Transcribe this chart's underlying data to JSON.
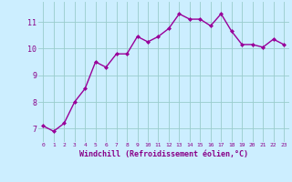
{
  "x": [
    0,
    1,
    2,
    3,
    4,
    5,
    6,
    7,
    8,
    9,
    10,
    11,
    12,
    13,
    14,
    15,
    16,
    17,
    18,
    19,
    20,
    21,
    22,
    23
  ],
  "y": [
    7.1,
    6.9,
    7.2,
    8.0,
    8.5,
    9.5,
    9.3,
    9.8,
    9.8,
    10.45,
    10.25,
    10.45,
    10.75,
    11.3,
    11.1,
    11.1,
    10.85,
    11.3,
    10.65,
    10.15,
    10.15,
    10.05,
    10.35,
    10.15
  ],
  "line_color": "#990099",
  "marker": "D",
  "marker_size": 2,
  "bg_color": "#cceeff",
  "grid_color": "#99cccc",
  "xlabel": "Windchill (Refroidissement éolien,°C)",
  "tick_color": "#880088",
  "yticks": [
    7,
    8,
    9,
    10,
    11
  ],
  "xticks": [
    0,
    1,
    2,
    3,
    4,
    5,
    6,
    7,
    8,
    9,
    10,
    11,
    12,
    13,
    14,
    15,
    16,
    17,
    18,
    19,
    20,
    21,
    22,
    23
  ],
  "xlim": [
    -0.5,
    23.5
  ],
  "ylim": [
    6.5,
    11.75
  ],
  "line_width": 1.0
}
